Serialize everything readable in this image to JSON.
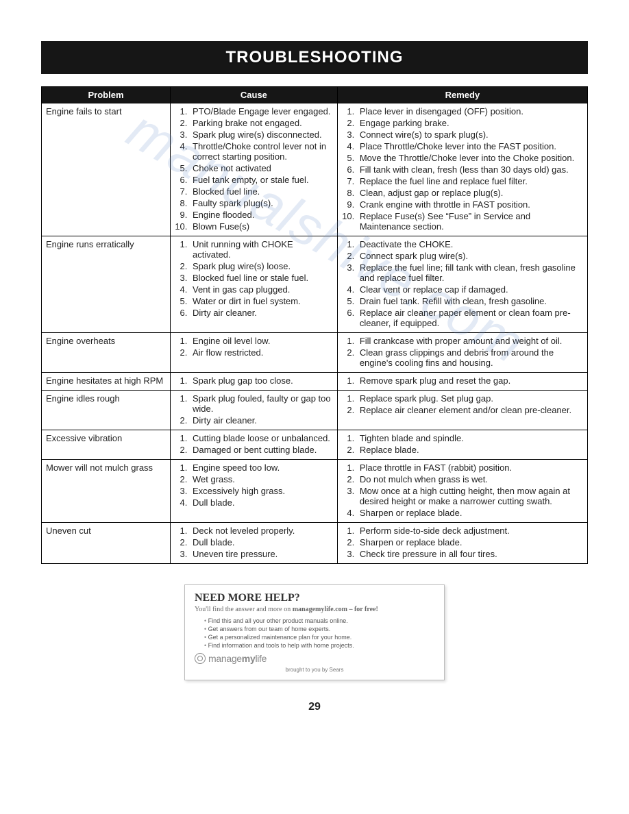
{
  "title": "TROUBLESHOOTING",
  "columns": [
    "Problem",
    "Cause",
    "Remedy"
  ],
  "rows": [
    {
      "problem": "Engine fails to start",
      "causes": [
        "PTO/Blade Engage lever engaged.",
        "Parking brake not engaged.",
        "Spark plug wire(s) disconnected.",
        "Throttle/Choke control lever not in correct starting position.",
        "Choke not activated",
        "Fuel tank empty, or stale fuel.",
        "Blocked fuel line.",
        "Faulty spark plug(s).",
        "Engine flooded.",
        "Blown Fuse(s)"
      ],
      "remedies": [
        "Place lever in disengaged (OFF) position.",
        "Engage parking brake.",
        "Connect wire(s) to spark plug(s).",
        "Place Throttle/Choke lever into the FAST position.",
        "Move the Throttle/Choke lever into the Choke position.",
        "Fill tank with clean, fresh (less than 30 days old) gas.",
        "Replace the fuel line and replace fuel filter.",
        "Clean, adjust gap or replace plug(s).",
        "Crank engine with throttle in FAST position.",
        "Replace Fuse(s) See “Fuse” in Service and Maintenance section."
      ]
    },
    {
      "problem": "Engine runs erratically",
      "causes": [
        "Unit running with CHOKE activated.",
        "Spark plug wire(s) loose.",
        "Blocked fuel line or stale fuel.",
        "Vent in gas cap plugged.",
        "Water or dirt in fuel system.",
        "Dirty air cleaner."
      ],
      "remedies": [
        "Deactivate the CHOKE.",
        "Connect spark plug wire(s).",
        "Replace the fuel line; fill tank with clean, fresh gasoline and replace fuel filter.",
        "Clear vent or replace cap if damaged.",
        "Drain fuel tank. Refill with clean, fresh gasoline.",
        "Replace air cleaner paper element or clean foam pre-cleaner, if equipped."
      ]
    },
    {
      "problem": "Engine overheats",
      "causes": [
        "Engine oil level low.",
        "Air flow restricted."
      ],
      "remedies": [
        "Fill crankcase with proper amount and weight of oil.",
        "Clean grass clippings and debris from around the engine's cooling fins and housing."
      ]
    },
    {
      "problem": "Engine hesitates at high RPM",
      "causes": [
        "Spark plug gap too close."
      ],
      "remedies": [
        "Remove spark plug and reset the gap."
      ]
    },
    {
      "problem": "Engine idles rough",
      "causes": [
        "Spark plug fouled, faulty or gap too wide.",
        "Dirty air cleaner."
      ],
      "remedies": [
        "Replace spark plug. Set plug gap.",
        "Replace air cleaner element and/or clean pre-cleaner."
      ]
    },
    {
      "problem": "Excessive vibration",
      "causes": [
        "Cutting blade loose or unbalanced.",
        "Damaged or bent cutting blade."
      ],
      "remedies": [
        "Tighten blade and spindle.",
        "Replace blade."
      ]
    },
    {
      "problem": "Mower will not mulch grass",
      "causes": [
        "Engine speed too low.",
        "Wet grass.",
        "Excessively high grass.",
        "Dull blade."
      ],
      "remedies": [
        "Place throttle in FAST (rabbit) position.",
        "Do not mulch when grass is wet.",
        "Mow once at a high cutting height, then mow again at desired height or make a narrower cutting swath.",
        "Sharpen or replace blade."
      ]
    },
    {
      "problem": "Uneven cut",
      "causes": [
        "Deck not leveled properly.",
        "Dull blade.",
        "Uneven tire pressure."
      ],
      "remedies": [
        "Perform side-to-side deck adjustment.",
        "Sharpen or replace blade.",
        "Check tire pressure in all four tires."
      ]
    }
  ],
  "helpbox": {
    "title": "NEED MORE HELP?",
    "subtitle_pre": "You'll find the answer and more on ",
    "subtitle_bold": "managemylife.com – for free!",
    "bullets": [
      "Find this and all your other product manuals online.",
      "Get answers from our team of home experts.",
      "Get a personalized maintenance plan for your home.",
      "Find information and tools to help with home projects."
    ],
    "logo_pre": "manage",
    "logo_bold": "my",
    "logo_post": "life",
    "brought": "brought to you by Sears"
  },
  "page_number": "29",
  "watermark": "manualshive.com",
  "style": {
    "page_bg": "#ffffff",
    "bar_bg": "#161616",
    "bar_fg": "#ffffff",
    "border_color": "#000000",
    "body_font_size": 13,
    "title_font_size": 24,
    "helpbox_border": "#bcbcbc",
    "watermark_color": "rgba(100,140,200,0.18)"
  }
}
